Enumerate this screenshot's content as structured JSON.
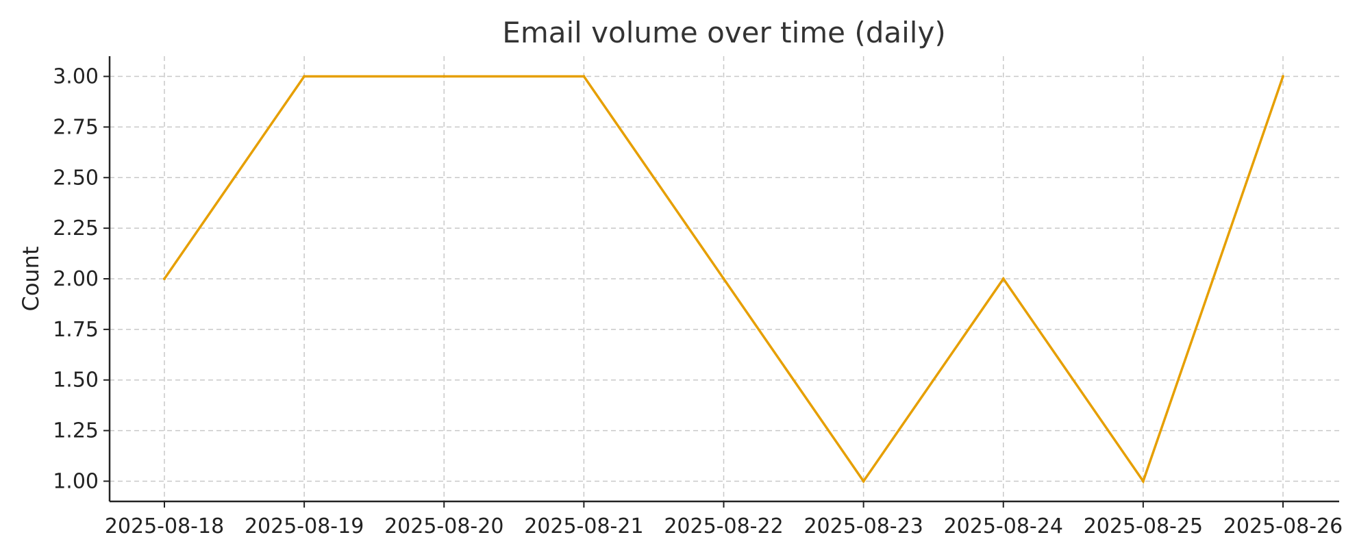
{
  "chart_data": {
    "type": "line",
    "title": "Email volume over time (daily)",
    "xlabel": "",
    "ylabel": "Count",
    "x": [
      "2025-08-18",
      "2025-08-19",
      "2025-08-20",
      "2025-08-21",
      "2025-08-22",
      "2025-08-23",
      "2025-08-24",
      "2025-08-25",
      "2025-08-26"
    ],
    "series": [
      {
        "values": [
          2,
          3,
          3,
          3,
          2,
          1,
          2,
          1,
          3
        ],
        "color": "#e69f00"
      }
    ],
    "ylim": [
      0.9,
      3.1
    ],
    "yticks": [
      "1.00",
      "1.25",
      "1.50",
      "1.75",
      "2.00",
      "2.25",
      "2.50",
      "2.75",
      "3.00"
    ],
    "grid": true,
    "legend": "none"
  }
}
